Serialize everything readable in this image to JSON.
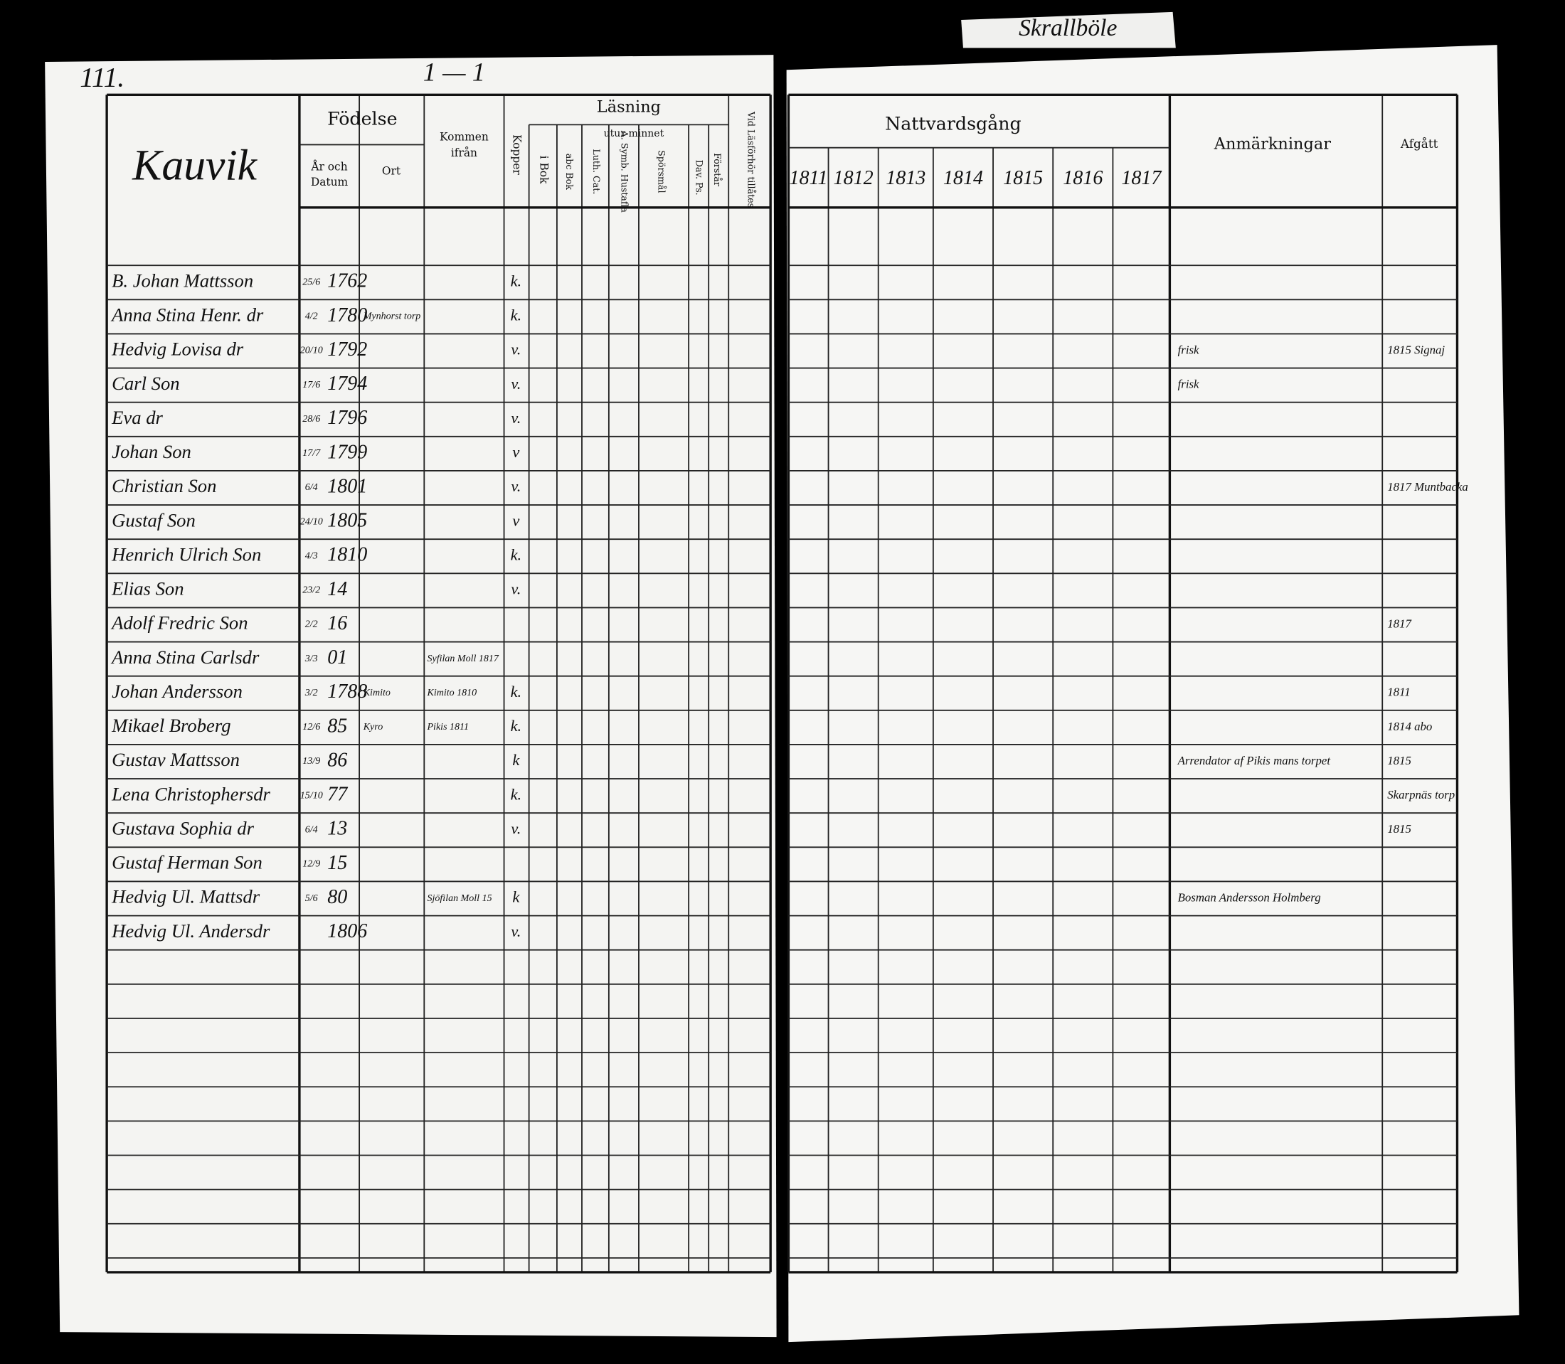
{
  "header": {
    "page_number": "111.",
    "top_mark": "1 — 1",
    "tab_label": "Skrallböle"
  },
  "left_headers": {
    "village": "Kauvik",
    "fodelse": "Födelse",
    "ar_och": "År och",
    "datum": "Datum",
    "ort": "Ort",
    "kommen": "Kommen",
    "ifran": "ifrån",
    "kopper": "Kopper",
    "lasning": "Läsning",
    "utur_minnet": "utur minnet",
    "i_bok": "i Bok",
    "abc_bok": "abc Bok",
    "luth_cat": "Luth. Cat.",
    "symb": "A. Symb. Hustafla",
    "sporsmal": "Spörsmål",
    "forstar": "Förstår",
    "dav_ps": "Dav. Ps.",
    "vid_lasforhor": "Vid Läsförhör tillåtes"
  },
  "right_headers": {
    "nattvardsgang": "Nattvardsgång",
    "years": [
      "1811",
      "1812",
      "1813",
      "1814",
      "1815",
      "1816",
      "1817"
    ],
    "anmarkningar": "Anmärkningar",
    "afgatt": "Afgått"
  },
  "rows": [
    {
      "name": "B. Johan Mattsson",
      "day_month": "25/6",
      "year": "1762",
      "kopper": "k."
    },
    {
      "name": "Anna Stina Henr. dr",
      "day_month": "4/2",
      "year": "1780",
      "place": "Mynhorst torp",
      "kopper": "k."
    },
    {
      "name": "Hedvig Lovisa dr",
      "day_month": "20/10",
      "year": "1792",
      "kopper": "v.",
      "remark": "frisk",
      "afgatt": "1815 Signaj"
    },
    {
      "name": "Carl Son",
      "day_month": "17/6",
      "year": "1794",
      "kopper": "v.",
      "remark": "frisk"
    },
    {
      "name": "Eva dr",
      "day_month": "28/6",
      "year": "1796",
      "kopper": "v."
    },
    {
      "name": "Johan Son",
      "day_month": "17/7",
      "year": "1799",
      "kopper": "v"
    },
    {
      "name": "Christian Son",
      "day_month": "6/4",
      "year": "1801",
      "kopper": "v.",
      "afgatt": "1817 Muntbacka"
    },
    {
      "name": "Gustaf Son",
      "day_month": "24/10",
      "year": "1805",
      "kopper": "v"
    },
    {
      "name": "Henrich Ulrich Son",
      "day_month": "4/3",
      "year": "1810",
      "kopper": "k."
    },
    {
      "name": "Elias Son",
      "day_month": "23/2",
      "year": "14",
      "kopper": "v."
    },
    {
      "name": "Adolf Fredric Son",
      "day_month": "2/2",
      "year": "16",
      "afgatt": "1817"
    },
    {
      "name": "Anna Stina Carlsdr",
      "day_month": "3/3",
      "year": "01",
      "from": "Syfilan Moll 1817"
    },
    {
      "name": "Johan Andersson",
      "day_month": "3/2",
      "year": "1788",
      "place": "Kimito",
      "from": "Kimito 1810",
      "kopper": "k.",
      "afgatt": "1811"
    },
    {
      "name": "Mikael Broberg",
      "day_month": "12/6",
      "year": "85",
      "place": "Kyro",
      "from": "Pikis 1811",
      "kopper": "k.",
      "afgatt": "1814 abo"
    },
    {
      "name": "Gustav Mattsson",
      "day_month": "13/9",
      "year": "86",
      "kopper": "k",
      "remark": "Arrendator af Pikis mans torpet",
      "afgatt": "1815"
    },
    {
      "name": "Lena Christophersdr",
      "day_month": "15/10",
      "year": "77",
      "kopper": "k.",
      "afgatt": "Skarpnäs torp"
    },
    {
      "name": "Gustava Sophia dr",
      "day_month": "6/4",
      "year": "13",
      "kopper": "v.",
      "afgatt": "1815"
    },
    {
      "name": "Gustaf Herman Son",
      "day_month": "12/9",
      "year": "15"
    },
    {
      "name": "Hedvig Ul. Mattsdr",
      "day_month": "5/6",
      "year": "80",
      "from": "Sjöfilan Moll 15",
      "kopper": "k",
      "remark": "Bosman Andersson Holmberg"
    },
    {
      "name": "Hedvig Ul. Andersdr",
      "day_month": "",
      "year": "1806",
      "kopper": "v."
    }
  ]
}
